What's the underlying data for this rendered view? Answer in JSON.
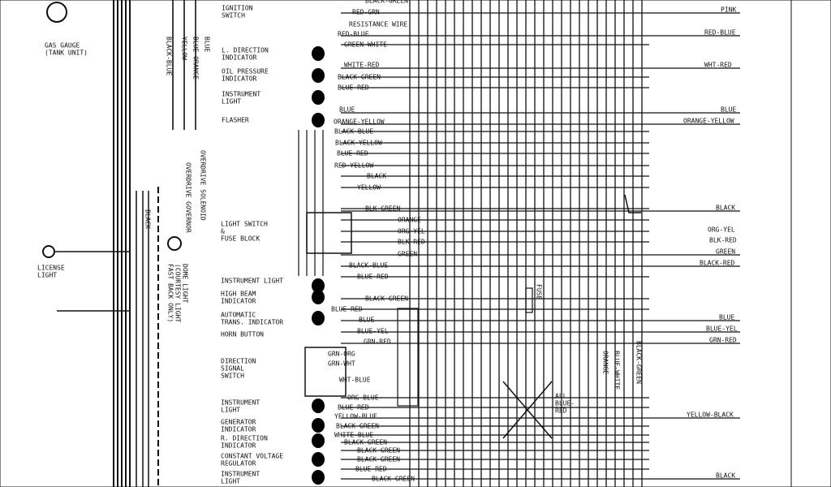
{
  "components": [
    [
      "GAS GAUGE",
      "(TANK UNIT)"
    ],
    [
      "LICENSE",
      "LIGHT"
    ],
    [
      "IGNITION",
      "SWITCH"
    ],
    [
      "L. DIRECTION",
      "INDICATOR"
    ],
    [
      "OIL PRESSURE",
      "INDICATOR"
    ],
    [
      "INSTRUMENT",
      "LIGHT"
    ],
    [
      "FLASHER"
    ],
    [
      "LIGHT SWITCH",
      "&",
      "FUSE BLOCK"
    ],
    [
      "INSTRUMENT LIGHT"
    ],
    [
      "HIGH BEAM",
      "INDICATOR"
    ],
    [
      "AUTOMATIC",
      "TRANS. INDICATOR"
    ],
    [
      "HORN BUTTON"
    ],
    [
      "DIRECTION",
      "SIGNAL",
      "SWITCH"
    ],
    [
      "INSTRUMENT",
      "LIGHT"
    ],
    [
      "GENERATOR",
      "INDICATOR"
    ],
    [
      "R. DIRECTION",
      "INDICATOR"
    ],
    [
      "CONSTANT VOLTAGE",
      "REGULATOR"
    ],
    [
      "INSTRUMENT",
      "LIGHT"
    ]
  ],
  "wire_labels": [
    "BLACK-GREEN",
    "RED-GRN",
    "RESISTANCE WIRE",
    "RED-BLUE",
    "GREEN-WHITE",
    "WHITE-RED",
    "BLACK-GREEN",
    "BLUE-RED",
    "BLUE",
    "ORANGE-YELLOW",
    "BLACK-BLUE",
    "BLACK-YELLOW",
    "BLUE-RED",
    "RED-YELLOW",
    "BLACK",
    "YELLOW",
    "BLK-GREEN",
    "ORANGE",
    "ORG-YEL",
    "BLK-RED",
    "GREEN",
    "BLACK-BLUE",
    "BLUE-RED",
    "BLACK-GREEN",
    "BLUE-RED",
    "BLUE",
    "BLUE-YEL",
    "GRN-RED",
    "GRN-ORG",
    "GRN-WHT",
    "WHT-BLUE",
    "ORG-BLUE",
    "BLUE-RED",
    "YELLOW-BLUE",
    "BLACK-GREEN",
    "WHITE-BLUE",
    "BLACK-GREEN",
    "BLACK-GREEN",
    "BLACK-GREEN",
    "BLUE-RED",
    "BLACK-GREEN"
  ],
  "right_labels": [
    "PINK",
    "RED-BLUE",
    "WHT-RED",
    "BLUE",
    "ORANGE-YELLOW",
    "BLACK",
    "ORG-YEL",
    "BLK-RED",
    "GREEN",
    "BLACK-RED",
    "BLUE",
    "BLUE-YEL",
    "GRN-RED",
    "YELLOW-BLACK",
    "BLACK"
  ],
  "vertical_labels": [
    "BLACK-BLUE",
    "YELLOW",
    "BLUE-ORANGE",
    "BLUE",
    "OVERDRIVE SOLENOID",
    "OVERDRIVE GOVERNOR",
    "DOME LIGHT",
    "(COURTESY LIGHT",
    "FAST BACK ONLY)",
    "BLACK",
    "FUSE",
    "ORANGE",
    "BLUE-WHITE",
    "BLACK-GREEN",
    "ALL",
    "BLUE-",
    "RED"
  ]
}
